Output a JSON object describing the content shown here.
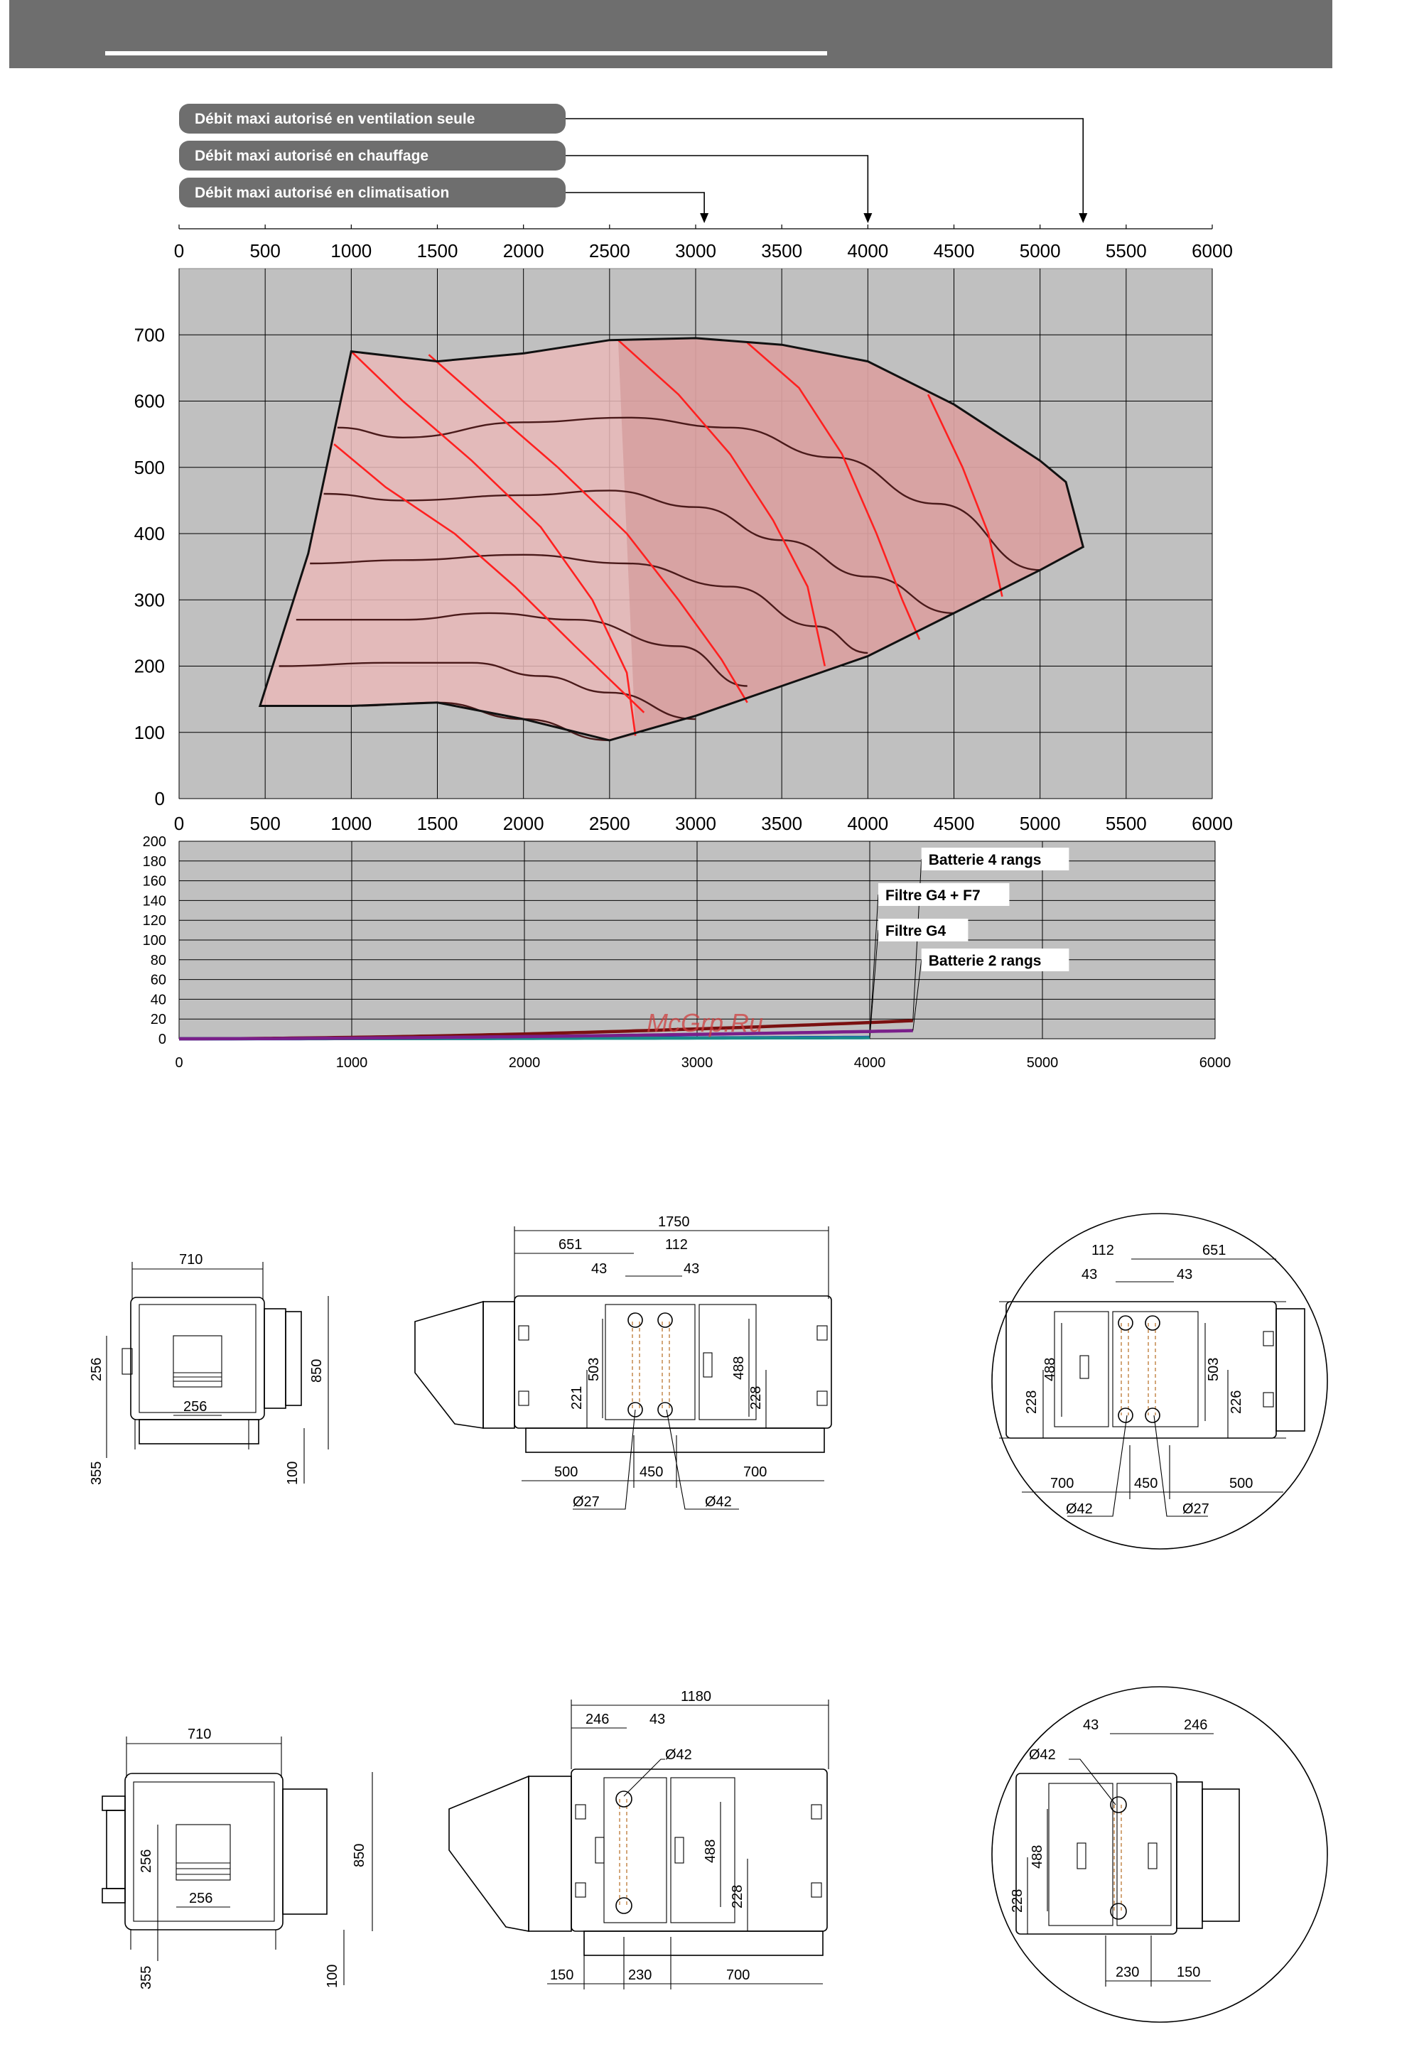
{
  "header": {
    "bg": "#6e6e6e"
  },
  "labels": [
    "Débit maxi autorisé en ventilation seule",
    "Débit maxi autorisé en chauffage",
    "Débit maxi autorisé en climatisation"
  ],
  "label_targets": [
    5250,
    4000,
    3050
  ],
  "chart_data": [
    {
      "type": "area",
      "x_ticks": [
        "0",
        "500",
        "1000",
        "1500",
        "2000",
        "2500",
        "3000",
        "3500",
        "4000",
        "4500",
        "5000",
        "5500",
        "6000"
      ],
      "y_ticks": [
        "0",
        "100",
        "200",
        "300",
        "400",
        "500",
        "600",
        "700"
      ],
      "xlim": [
        0,
        6000
      ],
      "ylim": [
        0,
        800
      ],
      "grid": true,
      "envelope": [
        [
          1000,
          675
        ],
        [
          1500,
          660
        ],
        [
          2000,
          672
        ],
        [
          2500,
          692
        ],
        [
          3000,
          695
        ],
        [
          3500,
          685
        ],
        [
          4000,
          660
        ],
        [
          4500,
          595
        ],
        [
          5000,
          510
        ],
        [
          5150,
          478
        ],
        [
          5250,
          380
        ],
        [
          5000,
          345
        ],
        [
          4500,
          280
        ],
        [
          4000,
          215
        ],
        [
          3500,
          170
        ],
        [
          3000,
          125
        ],
        [
          2500,
          88
        ],
        [
          2000,
          120
        ],
        [
          1500,
          145
        ],
        [
          1000,
          140
        ],
        [
          470,
          140
        ],
        [
          750,
          370
        ],
        [
          1000,
          675
        ]
      ],
      "speed_curves": [
        [
          [
            920,
            560
          ],
          [
            1300,
            545
          ],
          [
            2000,
            568
          ],
          [
            2600,
            575
          ],
          [
            3200,
            560
          ],
          [
            3800,
            515
          ],
          [
            4400,
            445
          ],
          [
            5000,
            345
          ]
        ],
        [
          [
            840,
            460
          ],
          [
            1300,
            450
          ],
          [
            2000,
            458
          ],
          [
            2500,
            465
          ],
          [
            3000,
            440
          ],
          [
            3500,
            390
          ],
          [
            4000,
            335
          ],
          [
            4500,
            280
          ]
        ],
        [
          [
            760,
            355
          ],
          [
            1300,
            360
          ],
          [
            2000,
            368
          ],
          [
            2600,
            355
          ],
          [
            3200,
            320
          ],
          [
            3700,
            260
          ],
          [
            4000,
            220
          ]
        ],
        [
          [
            680,
            270
          ],
          [
            1300,
            270
          ],
          [
            1800,
            280
          ],
          [
            2300,
            270
          ],
          [
            2900,
            230
          ],
          [
            3300,
            170
          ]
        ],
        [
          [
            580,
            200
          ],
          [
            1200,
            205
          ],
          [
            1700,
            205
          ],
          [
            2100,
            185
          ],
          [
            2500,
            160
          ],
          [
            3000,
            120
          ]
        ],
        [
          [
            470,
            140
          ],
          [
            1000,
            140
          ],
          [
            1500,
            145
          ],
          [
            2000,
            120
          ],
          [
            2500,
            88
          ]
        ]
      ],
      "power_curves": [
        [
          [
            1000,
            675
          ],
          [
            1300,
            600
          ],
          [
            1700,
            510
          ],
          [
            2100,
            410
          ],
          [
            2400,
            300
          ],
          [
            2600,
            190
          ],
          [
            2650,
            95
          ]
        ],
        [
          [
            900,
            535
          ],
          [
            1200,
            470
          ],
          [
            1600,
            400
          ],
          [
            1950,
            320
          ],
          [
            2300,
            230
          ],
          [
            2700,
            130
          ]
        ],
        [
          [
            1450,
            670
          ],
          [
            1800,
            590
          ],
          [
            2200,
            500
          ],
          [
            2600,
            400
          ],
          [
            2900,
            300
          ],
          [
            3150,
            210
          ],
          [
            3300,
            145
          ]
        ],
        [
          [
            2550,
            692
          ],
          [
            2900,
            610
          ],
          [
            3200,
            520
          ],
          [
            3450,
            420
          ],
          [
            3650,
            320
          ],
          [
            3750,
            200
          ]
        ],
        [
          [
            3300,
            688
          ],
          [
            3600,
            620
          ],
          [
            3850,
            520
          ],
          [
            4050,
            400
          ],
          [
            4200,
            300
          ],
          [
            4300,
            240
          ]
        ],
        [
          [
            4350,
            610
          ],
          [
            4550,
            500
          ],
          [
            4700,
            400
          ],
          [
            4780,
            305
          ]
        ],
        [
          [
            5150,
            478
          ],
          [
            5250,
            380
          ]
        ]
      ]
    },
    {
      "type": "line",
      "x_ticks": [
        "0",
        "1000",
        "2000",
        "3000",
        "4000",
        "5000",
        "6000"
      ],
      "y_ticks": [
        "0",
        "20",
        "40",
        "60",
        "80",
        "100",
        "120",
        "140",
        "160",
        "180",
        "200"
      ],
      "xlim": [
        0,
        6000
      ],
      "ylim": [
        0,
        200
      ],
      "grid": true,
      "series": [
        {
          "name": "Batterie 4 rangs",
          "color": "#7a1010",
          "exp": 1.75,
          "k": 8.2e-06,
          "xmax": 4250
        },
        {
          "name": "Filtre G4 + F7",
          "color": "#1f1fe0",
          "exp": 1.5,
          "k": 5.6e-06,
          "xmax": 4000
        },
        {
          "name": "Filtre G4",
          "color": "#1b8a8a",
          "exp": 1.5,
          "k": 4.2e-06,
          "xmax": 4000
        },
        {
          "name": "Batterie 2 rangs",
          "color": "#7a1f8a",
          "exp": 1.75,
          "k": 3.7e-06,
          "xmax": 4250
        }
      ]
    }
  ],
  "watermark": "McGrp.Ru",
  "drawings": {
    "row1": {
      "front": {
        "w": "710",
        "h": "850",
        "s1": "256",
        "s2": "256",
        "base": "355",
        "foot": "100"
      },
      "side": {
        "total": "1750",
        "left": "651",
        "pitch": "112",
        "a": "43",
        "b": "43",
        "v1": "503",
        "v2": "221",
        "v3": "488",
        "v4": "228",
        "bl": "500",
        "bm": "450",
        "br": "700",
        "d1": "Ø27",
        "d2": "Ø42"
      },
      "detail": {
        "pitch": "112",
        "right": "651",
        "a": "43",
        "b": "43",
        "v1": "488",
        "v2": "228",
        "v3": "503",
        "v4": "226",
        "bl": "700",
        "bm": "450",
        "br": "500",
        "d1": "Ø42",
        "d2": "Ø27"
      }
    },
    "row2": {
      "front": {
        "w": "710",
        "h": "850",
        "s1": "256",
        "s2": "256",
        "base": "355",
        "foot": "100"
      },
      "side": {
        "total": "1180",
        "left": "246",
        "a": "43",
        "d": "Ø42",
        "v1": "488",
        "v2": "228",
        "bl": "150",
        "bm": "230",
        "br": "700"
      },
      "detail": {
        "a": "43",
        "right": "246",
        "d": "Ø42",
        "v1": "488",
        "v2": "228",
        "bm": "230",
        "br": "150"
      }
    }
  }
}
